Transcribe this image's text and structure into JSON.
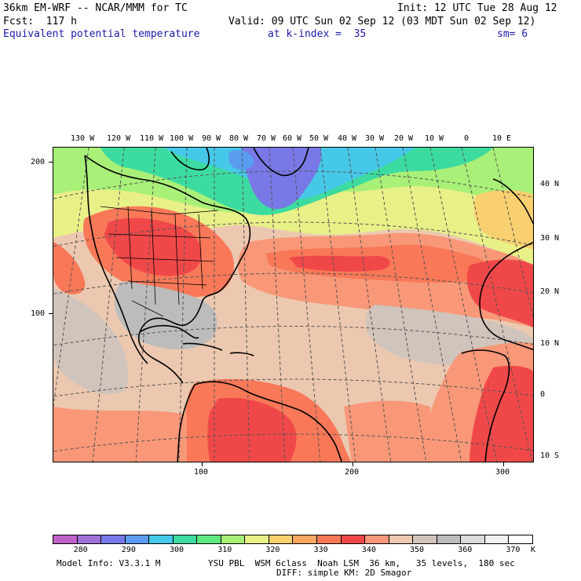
{
  "header": {
    "model_line": "36km EM-WRF -- NCAR/MMM for TC",
    "init_line": "Init: 12 UTC Tue 28 Aug 12",
    "fcst_line": "Fcst:  117 h",
    "valid_line": "Valid: 09 UTC Sun 02 Sep 12 (03 MDT Sun 02 Sep 12)",
    "field_name": "Equivalent potential temperature",
    "level": "at k-index =  35",
    "smoothing": "sm= 6"
  },
  "map": {
    "lon_labels": [
      "130 W",
      "120 W",
      "110 W",
      "100 W",
      "90 W",
      "80 W",
      "70 W",
      "60 W",
      "50 W",
      "40 W",
      "30 W",
      "20 W",
      "10 W",
      "0",
      "10 E"
    ],
    "lat_labels": [
      "40 N",
      "30 N",
      "20 N",
      "10 N",
      "0",
      "10 S"
    ],
    "left_axis_labels": [
      "200",
      "100"
    ],
    "bottom_axis_labels": [
      "100",
      "200",
      "300"
    ]
  },
  "legend": {
    "levels": [
      "280",
      "290",
      "300",
      "310",
      "320",
      "330",
      "340",
      "350",
      "360",
      "370"
    ],
    "unit": "K",
    "colors": [
      "#c060c8",
      "#a070d8",
      "#7878e6",
      "#5a9cf0",
      "#46c8e8",
      "#3cdca0",
      "#60e880",
      "#a8f078",
      "#e8f088",
      "#f8d070",
      "#f8a860",
      "#f87858",
      "#f04848",
      "#f89878",
      "#ecc8b0",
      "#d0c4bc",
      "#bcbcbc",
      "#dcdcdc",
      "#f0f0f0",
      "#ffffff"
    ]
  },
  "footer": {
    "model_info": "Model Info: V3.3.1 M",
    "physics": "YSU PBL  WSM 6class  Noah LSM  36 km,   35 levels,  180 sec",
    "diffusion": "DIFF: simple KM: 2D Smagor"
  }
}
